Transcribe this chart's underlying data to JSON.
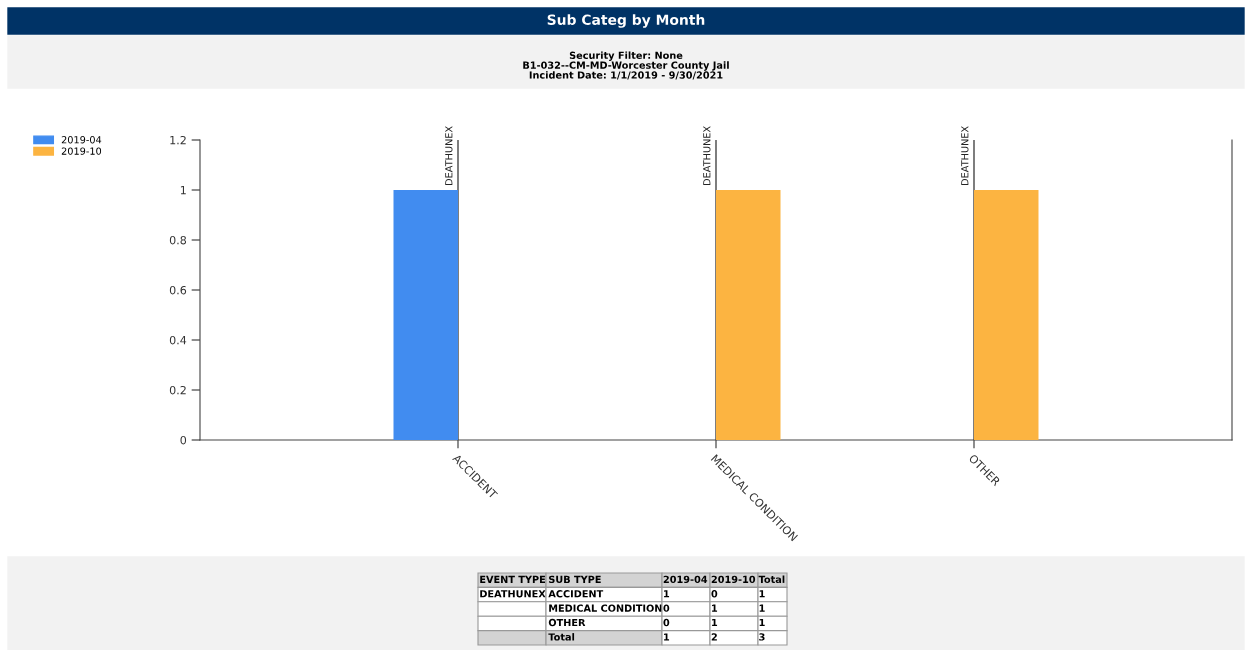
{
  "chart_data": {
    "type": "bar",
    "title": "Sub Categ by Month",
    "subtitle": "Security Filter: None\nB1-032--CM-MD-Worcester County Jail\nIncident Date: 1/1/2019 - 9/30/2021",
    "categories": [
      "ACCIDENT",
      "MEDICAL CONDITION",
      "OTHER"
    ],
    "series": [
      {
        "name": "2019-04",
        "color": "#418cf0",
        "values": [
          1,
          0,
          0
        ]
      },
      {
        "name": "2019-10",
        "color": "#fcb441",
        "values": [
          0,
          1,
          1
        ]
      }
    ],
    "ylim": [
      0,
      1.2
    ],
    "yticks": [
      0,
      0.2,
      0.4,
      0.6,
      0.8,
      1,
      1.2
    ],
    "grid": "x",
    "legend": "top left",
    "annotations": [
      {
        "text": "DEATHUNEX",
        "x": "ACCIDENT",
        "y": 1
      },
      {
        "text": "DEATHUNEX",
        "x": "MEDICAL CONDITION",
        "y": 1
      },
      {
        "text": "DEATHUNEX",
        "x": "OTHER",
        "y": 1
      },
      "EVENT TYPE",
      "SUB TYPE",
      "2019-04",
      "2019-10",
      "Total",
      "DEATHUNEX",
      "ACCIDENT",
      "1",
      "0",
      "1",
      "MEDICAL CONDITION",
      "0",
      "1",
      "1",
      "OTHER",
      "0",
      "1",
      "1",
      "Total",
      "1",
      "2",
      "3"
    ]
  }
}
